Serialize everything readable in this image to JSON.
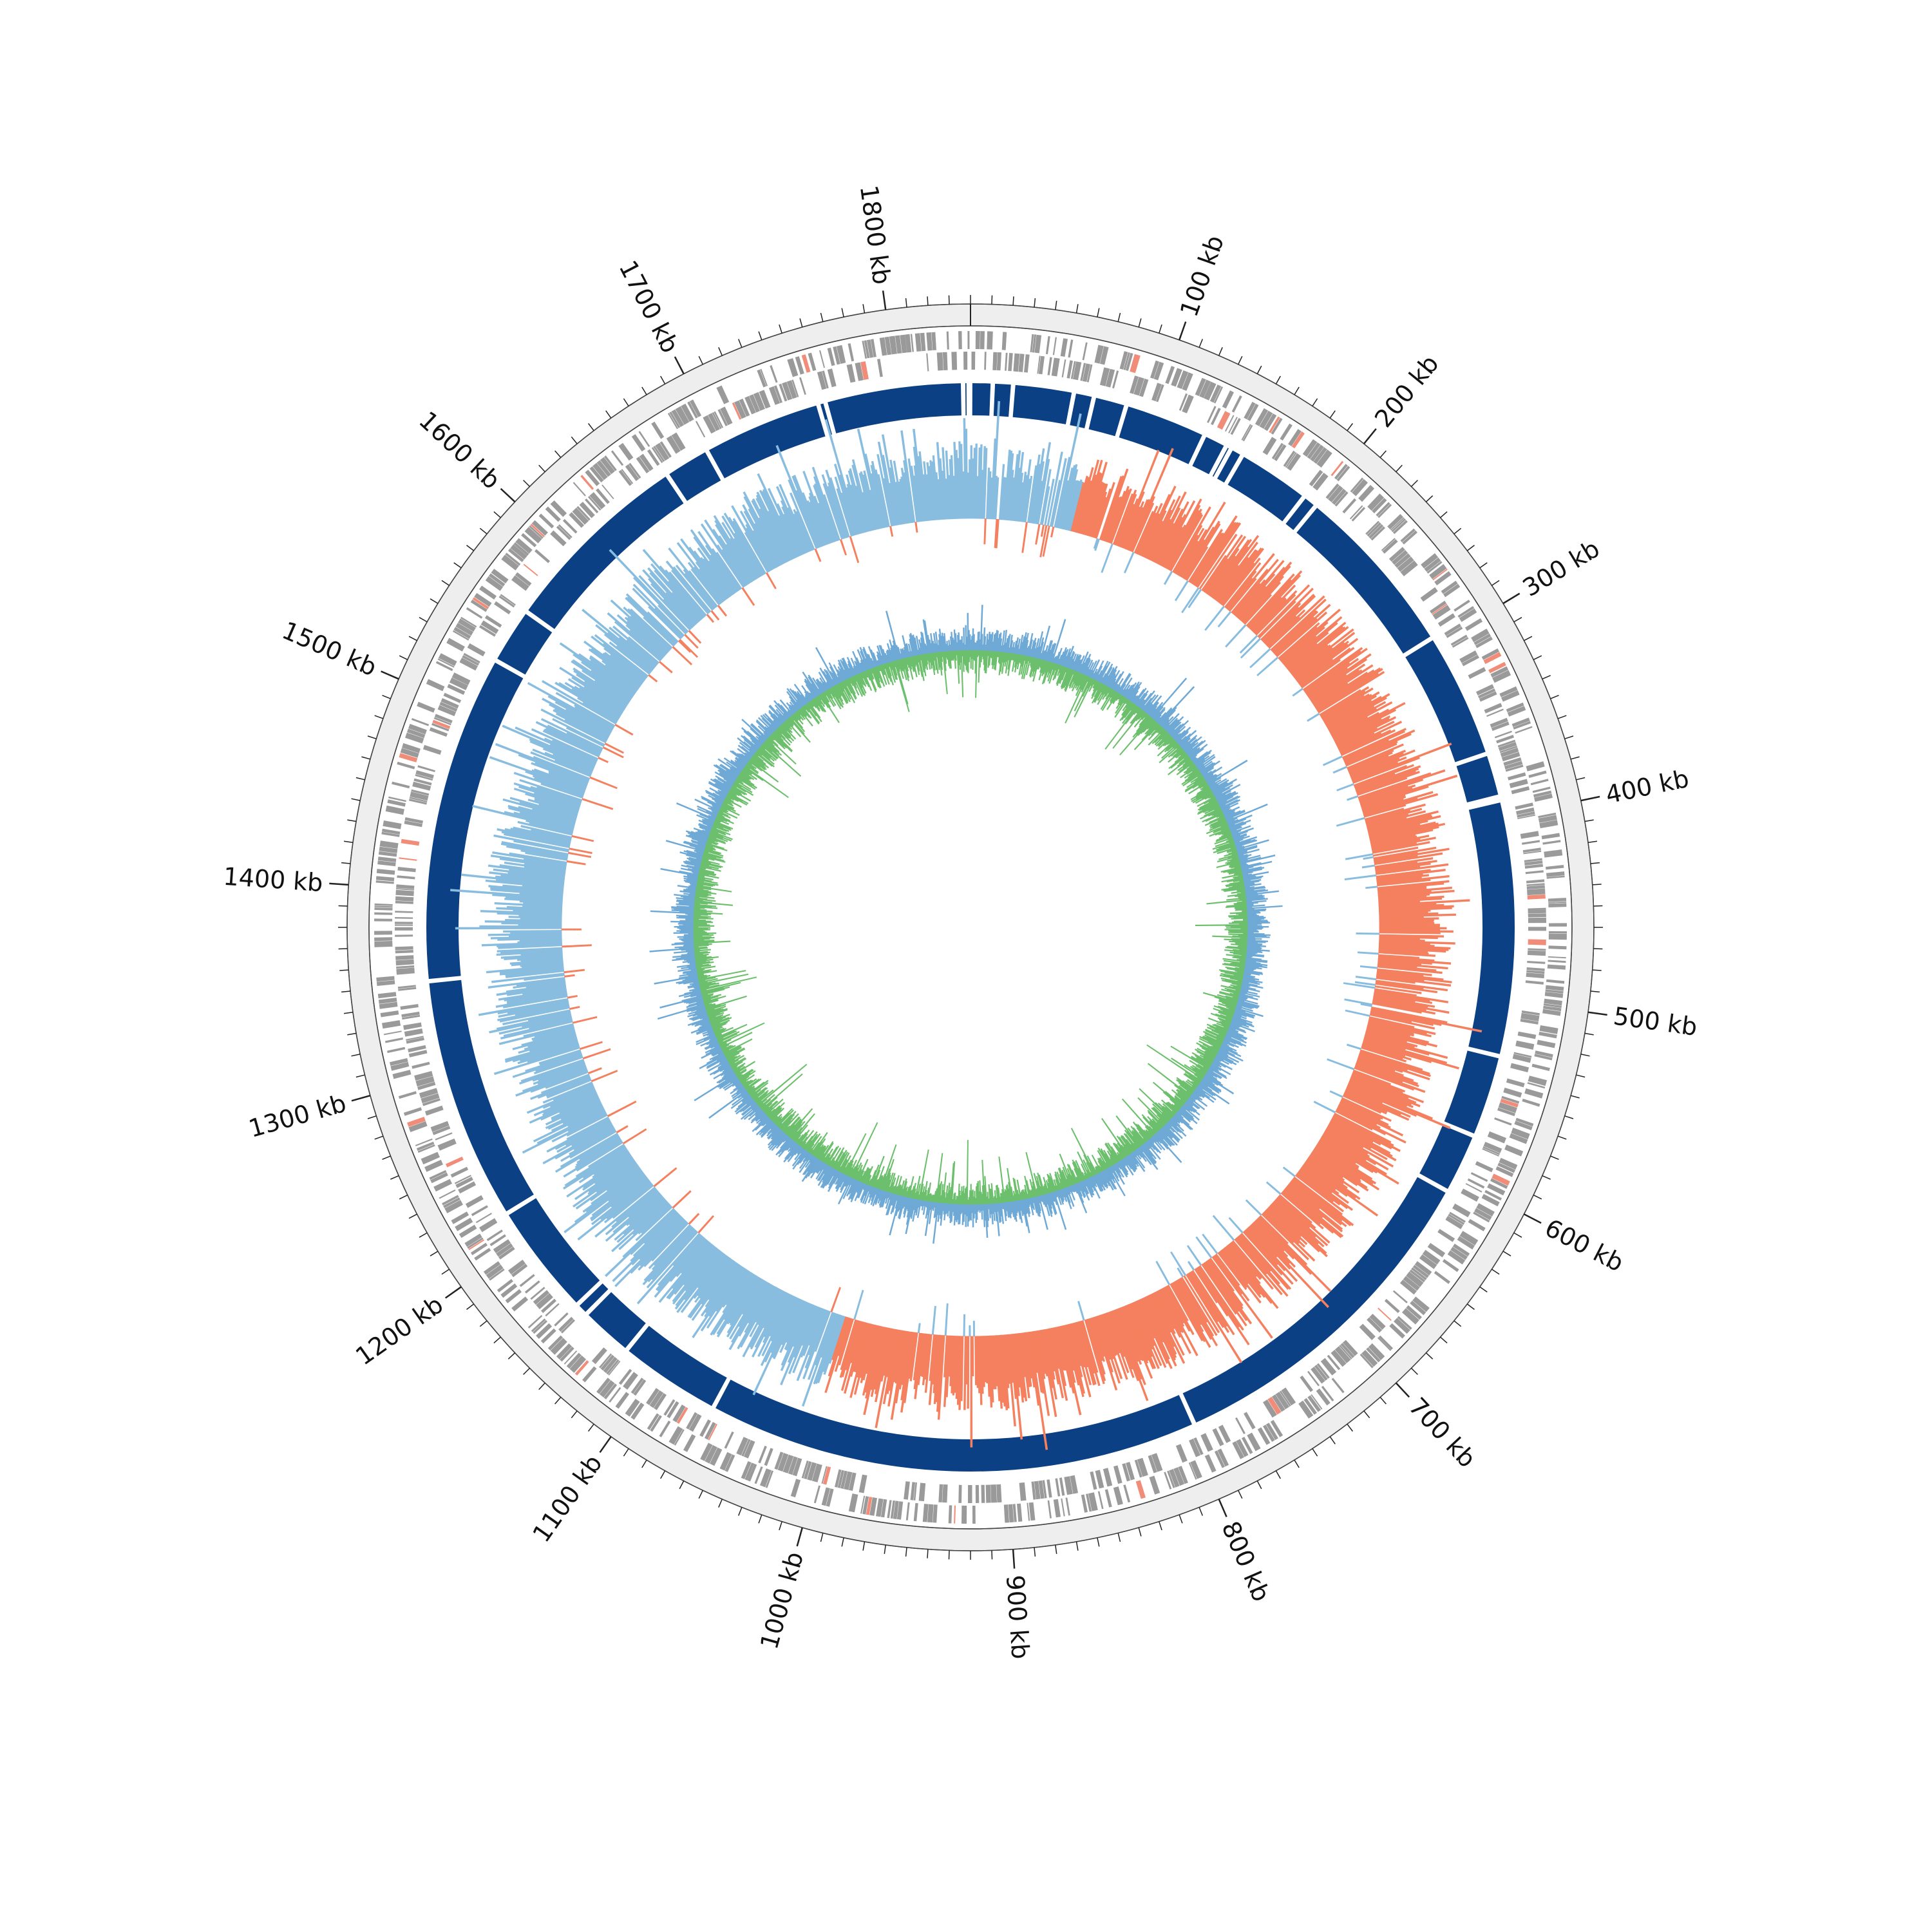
{
  "chart_data": {
    "type": "circular-genome-map",
    "genome_length_kb": 1840,
    "title": "",
    "tick_labels": [
      {
        "value_kb": 100,
        "label": "100 kb"
      },
      {
        "value_kb": 200,
        "label": "200 kb"
      },
      {
        "value_kb": 300,
        "label": "300 kb"
      },
      {
        "value_kb": 400,
        "label": "400 kb"
      },
      {
        "value_kb": 500,
        "label": "500 kb"
      },
      {
        "value_kb": 600,
        "label": "600 kb"
      },
      {
        "value_kb": 700,
        "label": "700 kb"
      },
      {
        "value_kb": 800,
        "label": "800 kb"
      },
      {
        "value_kb": 900,
        "label": "900 kb"
      },
      {
        "value_kb": 1000,
        "label": "1000 kb"
      },
      {
        "value_kb": 1100,
        "label": "1100 kb"
      },
      {
        "value_kb": 1200,
        "label": "1200 kb"
      },
      {
        "value_kb": 1300,
        "label": "1300 kb"
      },
      {
        "value_kb": 1400,
        "label": "1400 kb"
      },
      {
        "value_kb": 1500,
        "label": "1500 kb"
      },
      {
        "value_kb": 1600,
        "label": "1600 kb"
      },
      {
        "value_kb": 1700,
        "label": "1700 kb"
      },
      {
        "value_kb": 1800,
        "label": "1800 kb"
      }
    ],
    "minor_tick_step_kb": 10,
    "tracks": [
      {
        "name": "",
        "kind": "outer-band",
        "color": "#eeeeee"
      },
      {
        "name": "",
        "kind": "gene-features",
        "color": "#9a9a9a",
        "highlight_color": "#f08c78"
      },
      {
        "name": "",
        "kind": "segments",
        "color": "#0b4084",
        "gaps_kb": [
          12,
          23,
          56,
          67,
          85,
          130,
          143,
          146,
          153,
          193,
          201,
          296,
          365,
          389,
          391,
          530,
          575,
          608,
          796,
          1064,
          1120,
          1149,
          1156,
          1218,
          1351,
          1530,
          1561,
          1667,
          1692,
          1757,
          1761,
          1836
        ]
      },
      {
        "name": "",
        "kind": "skew",
        "positive_color": "#f4805f",
        "negative_color": "#88bde0",
        "sign_change_kb": [
          [
            0,
            72,
            "negative"
          ],
          [
            72,
            612,
            "positive"
          ],
          [
            612,
            1010,
            "positive"
          ],
          [
            1010,
            1840,
            "negative"
          ]
        ]
      },
      {
        "name": "",
        "kind": "content",
        "outer_color": "#6fa9d6",
        "inner_color": "#6cbf6c"
      }
    ]
  },
  "colors": {
    "background": "#ffffff",
    "band": "#eeeeee",
    "tick": "#222222",
    "label": "#111111"
  }
}
